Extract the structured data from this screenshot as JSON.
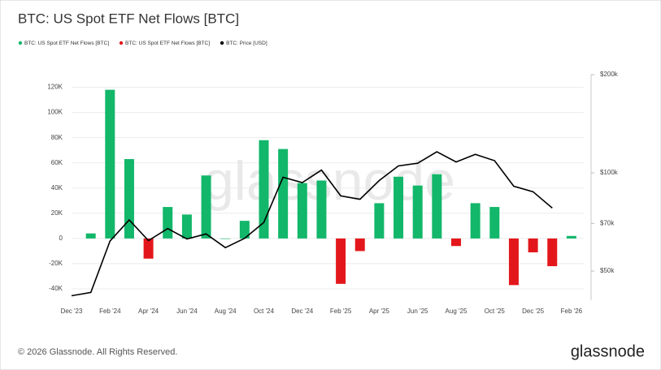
{
  "chart_data": {
    "type": "bar",
    "title": "BTC: US Spot ETF Net Flows [BTC]",
    "watermark": "glassnode",
    "footer": "© 2026 Glassnode. All Rights Reserved.",
    "brand": "glassnode",
    "legend": "top-left",
    "grid": true,
    "y2log": true,
    "categories": [
      "Dec '23",
      null,
      "Feb '24",
      null,
      "Apr '24",
      null,
      "Jun '24",
      null,
      "Aug '24",
      null,
      "Oct '24",
      null,
      "Dec '24",
      null,
      "Feb '25",
      null,
      "Apr '25",
      null,
      "Jun '25",
      null,
      "Aug '25",
      null,
      "Oct '25",
      null,
      "Dec '25",
      null,
      "Feb '26"
    ],
    "series": [
      {
        "name": "BTC: US Spot ETF Net Flows [BTC]",
        "type": "bar",
        "color": "#12b76a",
        "values": [
          null,
          4000,
          118000,
          63000,
          null,
          25000,
          19000,
          50000,
          0,
          14000,
          78000,
          71000,
          44000,
          46000,
          null,
          null,
          28000,
          49000,
          42000,
          51000,
          null,
          28000,
          25000,
          null,
          null,
          null,
          2000
        ]
      },
      {
        "name": "BTC: US Spot ETF Net Flows [BTC]",
        "type": "bar",
        "color": "#e3171b",
        "values": [
          null,
          null,
          null,
          null,
          -16000,
          null,
          null,
          null,
          null,
          null,
          null,
          null,
          null,
          null,
          -36000,
          -10000,
          null,
          null,
          null,
          null,
          -6000,
          null,
          null,
          -37000,
          -11000,
          -22000,
          null
        ]
      },
      {
        "name": "BTC: Price [USD]",
        "type": "line",
        "color": "#000000",
        "axis": "y2",
        "values": [
          42000,
          43000,
          61800,
          71700,
          62000,
          67500,
          62700,
          65000,
          59000,
          63000,
          70500,
          96900,
          93400,
          102000,
          85000,
          83000,
          94700,
          105000,
          107000,
          116000,
          108000,
          114000,
          109000,
          91000,
          87500,
          78000,
          null
        ]
      }
    ],
    "ylim": [
      -49000,
      130000
    ],
    "yticks": [
      {
        "value": -40000,
        "label": "-40K"
      },
      {
        "value": -20000,
        "label": "-20K"
      },
      0,
      {
        "value": 20000,
        "label": "20K"
      },
      {
        "value": 40000,
        "label": "40K"
      },
      {
        "value": 60000,
        "label": "60K"
      },
      {
        "value": 80000,
        "label": "80K"
      },
      {
        "value": 100000,
        "label": "100K"
      },
      {
        "value": 120000,
        "label": "120K"
      }
    ],
    "y2lim": [
      40700,
      200000
    ],
    "y2ticks": [
      {
        "value": 50000,
        "label": "$50k"
      },
      {
        "value": 70000,
        "label": "$70k"
      },
      {
        "value": 100000,
        "label": "$100k"
      },
      {
        "value": 200000,
        "label": "$200k"
      }
    ]
  }
}
